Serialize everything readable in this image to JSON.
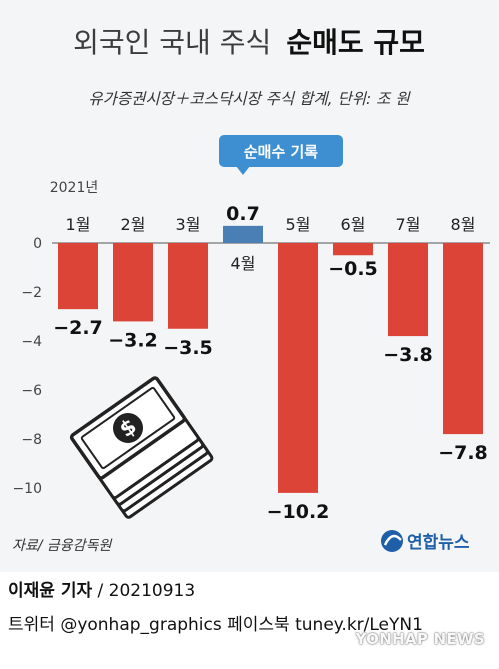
{
  "header": {
    "title_regular": "외국인 국내 주식",
    "title_bold": "순매도 규모",
    "subtitle": "유가증권시장＋코스닥시장 주식 합계, 단위: 조 원"
  },
  "annotation": {
    "badge": "순매수 기록"
  },
  "colors": {
    "negative": "#db4437",
    "positive": "#4a7fb5",
    "badge": "#3d8fd1",
    "background": "#f3f5f7"
  },
  "chart_data": {
    "type": "bar",
    "year_label": "2021년",
    "categories": [
      "1월",
      "2월",
      "3월",
      "4월",
      "5월",
      "6월",
      "7월",
      "8월"
    ],
    "values": [
      -2.7,
      -3.2,
      -3.5,
      0.7,
      -10.2,
      -0.5,
      -3.8,
      -7.8
    ],
    "value_labels": [
      "−2.7",
      "−3.2",
      "−3.5",
      "0.7",
      "−10.2",
      "−0.5",
      "−3.8",
      "−7.8"
    ],
    "yticks": [
      0,
      -2,
      -4,
      -6,
      -8,
      -10
    ],
    "ytick_labels": [
      "0",
      "−2",
      "−4",
      "−6",
      "−8",
      "−10"
    ],
    "ylim": [
      -10.2,
      0.7
    ],
    "grid": false,
    "legend": "none"
  },
  "source": "자료/ 금융감독원",
  "brand": "연합뉴스",
  "footer": {
    "author": "이재윤 기자",
    "date": " / 20210913",
    "social": "트위터 @yonhap_graphics  페이스북 tuney.kr/LeYN1",
    "watermark": "YONHAP NEWS"
  }
}
